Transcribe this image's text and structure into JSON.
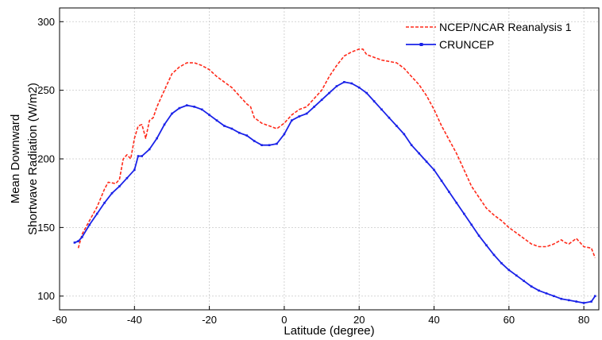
{
  "chart_data": {
    "type": "line",
    "title": "",
    "xlabel": "Latitude (degree)",
    "ylabel_lines": [
      "Mean Downward",
      "Shortwave Radiation (W/m2)"
    ],
    "xlim": [
      -60,
      84
    ],
    "ylim": [
      90,
      310
    ],
    "xticks": [
      -60,
      -40,
      -20,
      0,
      20,
      40,
      60,
      80
    ],
    "yticks": [
      100,
      150,
      200,
      250,
      300
    ],
    "xtick_labels": [
      "-60",
      "-40",
      "-20",
      "0",
      "20",
      "40",
      "60",
      "80"
    ],
    "ytick_labels": [
      "100",
      "150",
      "200",
      "250",
      "300"
    ],
    "grid": true,
    "legend_position": "top-right",
    "series": [
      {
        "name": "NCEP/NCAR Reanalysis 1",
        "color": "#ff2a1a",
        "style": "dashed",
        "x": [
          -55,
          -54,
          -52,
          -50,
          -48,
          -47,
          -45,
          -44,
          -43,
          -42,
          -41,
          -40,
          -39,
          -38,
          -37,
          -36,
          -35,
          -34,
          -32,
          -30,
          -28,
          -26,
          -24,
          -22,
          -20,
          -18,
          -16,
          -14,
          -12,
          -10,
          -9,
          -8,
          -7,
          -6,
          -4,
          -2,
          0,
          2,
          4,
          6,
          8,
          10,
          12,
          14,
          16,
          18,
          20,
          21,
          22,
          24,
          26,
          30,
          32,
          34,
          36,
          38,
          40,
          42,
          44,
          46,
          48,
          50,
          52,
          54,
          56,
          58,
          60,
          62,
          64,
          66,
          68,
          70,
          72,
          74,
          75,
          76,
          78,
          80,
          82,
          83
        ],
        "y": [
          135,
          145,
          155,
          165,
          178,
          183,
          182,
          185,
          200,
          203,
          200,
          215,
          224,
          225,
          215,
          228,
          230,
          238,
          250,
          262,
          267,
          270,
          270,
          268,
          265,
          260,
          256,
          252,
          246,
          240,
          238,
          230,
          228,
          226,
          224,
          222,
          226,
          232,
          236,
          238,
          244,
          250,
          260,
          268,
          275,
          278,
          280,
          280,
          276,
          274,
          272,
          270,
          266,
          260,
          254,
          246,
          236,
          224,
          214,
          204,
          192,
          180,
          172,
          164,
          159,
          155,
          150,
          146,
          142,
          138,
          136,
          136,
          138,
          141,
          139,
          138,
          142,
          136,
          135,
          128
        ]
      },
      {
        "name": "CRUNCEP",
        "color": "#1a22e8",
        "style": "solid",
        "x": [
          -56,
          -55,
          -54,
          -52,
          -50,
          -48,
          -46,
          -44,
          -42,
          -40,
          -39,
          -38,
          -36,
          -34,
          -32,
          -30,
          -28,
          -26,
          -24,
          -22,
          -20,
          -18,
          -16,
          -14,
          -12,
          -10,
          -8,
          -6,
          -4,
          -2,
          0,
          2,
          4,
          6,
          8,
          10,
          12,
          14,
          16,
          18,
          20,
          22,
          24,
          26,
          28,
          30,
          32,
          34,
          36,
          38,
          40,
          42,
          44,
          46,
          48,
          50,
          52,
          54,
          56,
          58,
          60,
          62,
          64,
          66,
          68,
          70,
          72,
          74,
          76,
          78,
          80,
          82,
          83
        ],
        "y": [
          139,
          140,
          143,
          152,
          160,
          168,
          175,
          180,
          186,
          192,
          202,
          202,
          207,
          215,
          225,
          233,
          237,
          239,
          238,
          236,
          232,
          228,
          224,
          222,
          219,
          217,
          213,
          210,
          210,
          211,
          218,
          228,
          231,
          233,
          238,
          243,
          248,
          253,
          256,
          255,
          252,
          248,
          242,
          236,
          230,
          224,
          218,
          210,
          204,
          198,
          192,
          184,
          176,
          168,
          160,
          152,
          144,
          137,
          130,
          124,
          119,
          115,
          111,
          107,
          104,
          102,
          100,
          98,
          97,
          96,
          95,
          96,
          100
        ]
      }
    ]
  }
}
